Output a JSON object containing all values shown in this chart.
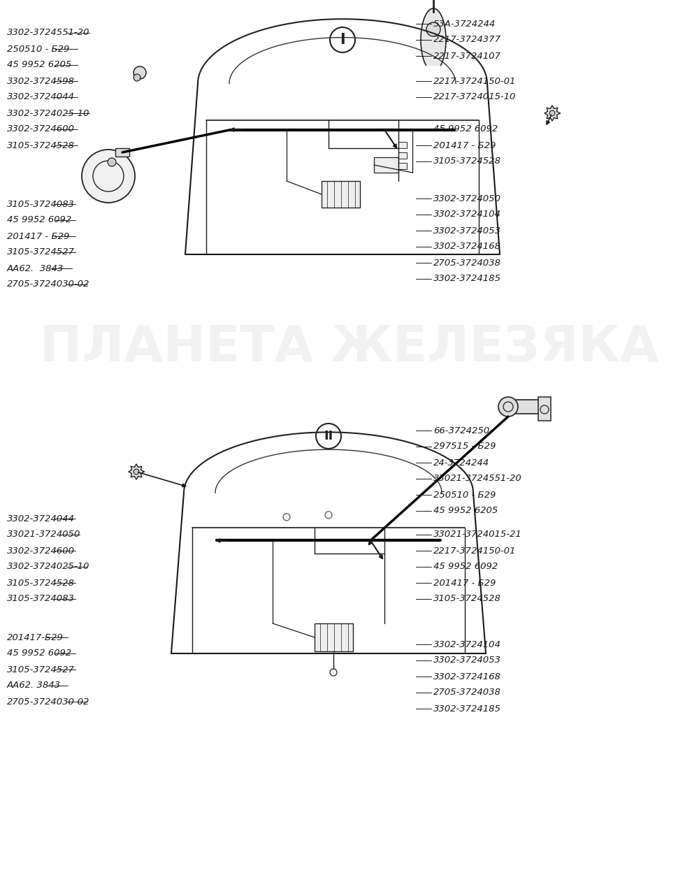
{
  "bg": "#ffffff",
  "fw": 10.0,
  "fh": 12.52,
  "watermark": "ПЛАНЕТА ЖЕЛЕЗЯКА",
  "wm_alpha": 0.18,
  "wm_fs": 52,
  "tc": "#1a1a1a",
  "lfs": 9.5,
  "I_labels_left": [
    [
      "3302-3724551-20",
      10,
      1205
    ],
    [
      "250510 - Б29",
      10,
      1182
    ],
    [
      "45 9952 6205",
      10,
      1159
    ],
    [
      "3302-3724598",
      10,
      1136
    ],
    [
      "3302-3724044",
      10,
      1113
    ],
    [
      "3302-3724025-10",
      10,
      1090
    ],
    [
      "3302-3724600",
      10,
      1067
    ],
    [
      "3105-3724528",
      10,
      1044
    ]
  ],
  "I_labels_left2": [
    [
      "3105-3724083",
      10,
      960
    ],
    [
      "45 9952 6092",
      10,
      937
    ],
    [
      "201417 - Б29",
      10,
      914
    ],
    [
      "3105-3724527",
      10,
      891
    ],
    [
      "АА62.  3843",
      10,
      868
    ],
    [
      "2705-3724030-02",
      10,
      845
    ]
  ],
  "I_labels_right": [
    [
      "53А-3724244",
      620,
      1218
    ],
    [
      "2217-3724377",
      620,
      1195
    ],
    [
      "2217-3724107",
      620,
      1172
    ],
    [
      "2217-3724150-01",
      620,
      1136
    ],
    [
      "2217-3724015-10",
      620,
      1113
    ],
    [
      "45 9952 6092",
      620,
      1067
    ],
    [
      "201417 - Б29",
      620,
      1044
    ],
    [
      "3105-3724528",
      620,
      1021
    ]
  ],
  "I_labels_right2": [
    [
      "3302-3724050",
      620,
      968
    ],
    [
      "3302-3724104",
      620,
      945
    ],
    [
      "3302-3724053",
      620,
      922
    ],
    [
      "3302-3724168",
      620,
      899
    ],
    [
      "2705-3724038",
      620,
      876
    ],
    [
      "3302-3724185",
      620,
      853
    ]
  ],
  "II_labels_right_top": [
    [
      "66-3724250",
      620,
      636
    ],
    [
      "297515 - Б29",
      620,
      613
    ],
    [
      "24-3724244",
      620,
      590
    ],
    [
      "33021-3724551-20",
      620,
      567
    ],
    [
      "250510 - Б29",
      620,
      544
    ],
    [
      "45 9952 6205",
      620,
      521
    ]
  ],
  "II_labels_right_mid": [
    [
      "33021-3724015-21",
      620,
      487
    ],
    [
      "2217-3724150-01",
      620,
      464
    ],
    [
      "45 9952 6092",
      620,
      441
    ],
    [
      "201417 - Б29",
      620,
      418
    ],
    [
      "3105-3724528",
      620,
      395
    ]
  ],
  "II_labels_right_bot": [
    [
      "3302-3724104",
      620,
      330
    ],
    [
      "3302-3724053",
      620,
      307
    ],
    [
      "3302-3724168",
      620,
      284
    ],
    [
      "2705-3724038",
      620,
      261
    ],
    [
      "3302-3724185",
      620,
      238
    ]
  ],
  "II_labels_left_top": [
    [
      "3302-3724044",
      10,
      510
    ],
    [
      "33021-3724050",
      10,
      487
    ],
    [
      "3302-3724600",
      10,
      464
    ],
    [
      "3302-3724025-10",
      10,
      441
    ],
    [
      "3105-3724528",
      10,
      418
    ],
    [
      "3105-3724083",
      10,
      395
    ]
  ],
  "II_labels_left_bot": [
    [
      "201417-Б29",
      10,
      340
    ],
    [
      "45 9952 6092",
      10,
      317
    ],
    [
      "3105-3724527",
      10,
      294
    ],
    [
      "АА62. 3843",
      10,
      271
    ],
    [
      "2705-3724030-02",
      10,
      248
    ]
  ]
}
